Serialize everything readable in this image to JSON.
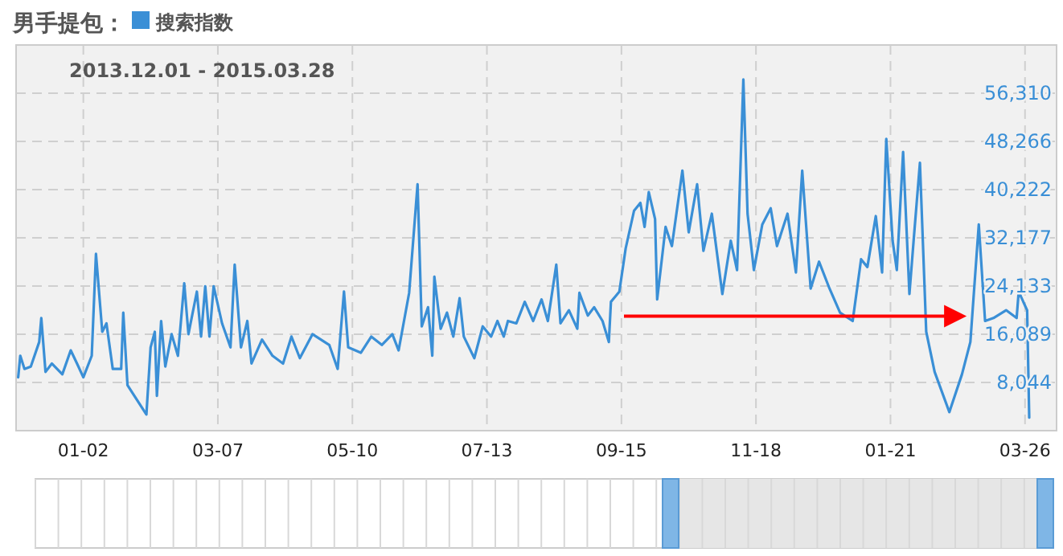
{
  "chart_data": {
    "type": "line",
    "title": "男手提包：",
    "subtitle": "2013.12.01 - 2015.03.28",
    "legend": "top left",
    "grid": true,
    "marker": "none",
    "line_style": "solid",
    "xlim": [
      "2013-12-01",
      "2015-03-28"
    ],
    "xticks": [
      {
        "value": "2014-01-02",
        "label": "01-02"
      },
      {
        "value": "2014-03-07",
        "label": "03-07"
      },
      {
        "value": "2014-05-10",
        "label": "05-10"
      },
      {
        "value": "2014-07-13",
        "label": "07-13"
      },
      {
        "value": "2014-09-15",
        "label": "09-15"
      },
      {
        "value": "2014-11-18",
        "label": "11-18"
      },
      {
        "value": "2015-01-21",
        "label": "01-21"
      },
      {
        "value": "2015-03-26",
        "label": "03-26"
      }
    ],
    "ylim": [
      0,
      64354
    ],
    "yticks": [
      {
        "value": 8044,
        "label": "8,044"
      },
      {
        "value": 16089,
        "label": "16,089"
      },
      {
        "value": 24133,
        "label": "24,133"
      },
      {
        "value": 32177,
        "label": "32,177"
      },
      {
        "value": 40222,
        "label": "40,222"
      },
      {
        "value": 48266,
        "label": "48,266"
      },
      {
        "value": 56310,
        "label": "56,310"
      }
    ],
    "x": [
      "2013-12-02",
      "2013-12-03",
      "2013-12-05",
      "2013-12-08",
      "2013-12-12",
      "2013-12-13",
      "2013-12-15",
      "2013-12-18",
      "2013-12-23",
      "2013-12-27",
      "2013-12-30",
      "2014-01-02",
      "2014-01-06",
      "2014-01-08",
      "2014-01-11",
      "2014-01-13",
      "2014-01-16",
      "2014-01-20",
      "2014-01-21",
      "2014-01-23",
      "2014-01-27",
      "2014-02-01",
      "2014-02-03",
      "2014-02-05",
      "2014-02-06",
      "2014-02-08",
      "2014-02-10",
      "2014-02-13",
      "2014-02-16",
      "2014-02-19",
      "2014-02-21",
      "2014-02-25",
      "2014-02-27",
      "2014-03-01",
      "2014-03-03",
      "2014-03-05",
      "2014-03-09",
      "2014-03-13",
      "2014-03-15",
      "2014-03-18",
      "2014-03-21",
      "2014-03-23",
      "2014-03-28",
      "2014-04-02",
      "2014-04-07",
      "2014-04-11",
      "2014-04-15",
      "2014-04-21",
      "2014-04-29",
      "2014-05-03",
      "2014-05-06",
      "2014-05-08",
      "2014-05-14",
      "2014-05-19",
      "2014-05-24",
      "2014-05-29",
      "2014-06-01",
      "2014-06-06",
      "2014-06-10",
      "2014-06-12",
      "2014-06-15",
      "2014-06-17",
      "2014-06-18",
      "2014-06-21",
      "2014-06-24",
      "2014-06-27",
      "2014-06-30",
      "2014-07-02",
      "2014-07-07",
      "2014-07-11",
      "2014-07-15",
      "2014-07-18",
      "2014-07-21",
      "2014-07-23",
      "2014-07-27",
      "2014-07-31",
      "2014-08-04",
      "2014-08-08",
      "2014-08-11",
      "2014-08-15",
      "2014-08-17",
      "2014-08-21",
      "2014-08-25",
      "2014-08-26",
      "2014-08-30",
      "2014-09-02",
      "2014-09-06",
      "2014-09-09",
      "2014-09-10",
      "2014-09-14",
      "2014-09-17",
      "2014-09-21",
      "2014-09-24",
      "2014-09-26",
      "2014-09-28",
      "2014-10-01",
      "2014-10-02",
      "2014-10-06",
      "2014-10-09",
      "2014-10-14",
      "2014-10-17",
      "2014-10-21",
      "2014-10-24",
      "2014-10-28",
      "2014-11-02",
      "2014-11-06",
      "2014-11-09",
      "2014-11-12",
      "2014-11-14",
      "2014-11-17",
      "2014-11-21",
      "2014-11-25",
      "2014-11-28",
      "2014-12-03",
      "2014-12-07",
      "2014-12-10",
      "2014-12-14",
      "2014-12-18",
      "2014-12-23",
      "2014-12-28",
      "2015-01-03",
      "2015-01-07",
      "2015-01-10",
      "2015-01-14",
      "2015-01-17",
      "2015-01-19",
      "2015-01-22",
      "2015-01-24",
      "2015-01-27",
      "2015-01-30",
      "2015-02-01",
      "2015-02-04",
      "2015-02-07",
      "2015-02-11",
      "2015-02-18",
      "2015-02-24",
      "2015-02-28",
      "2015-03-04",
      "2015-03-07",
      "2015-03-11",
      "2015-03-17",
      "2015-03-22",
      "2015-03-23",
      "2015-03-27",
      "2015-03-28"
    ],
    "series": [
      {
        "name": "搜索指数",
        "color": "#3a8fd6",
        "values": [
          8900,
          12500,
          10300,
          10700,
          14800,
          18800,
          9800,
          11200,
          9400,
          13400,
          11200,
          8900,
          12500,
          29500,
          16500,
          17900,
          10300,
          10300,
          19700,
          7600,
          5400,
          2700,
          13900,
          16500,
          5800,
          18300,
          10700,
          16100,
          12500,
          24600,
          16100,
          23200,
          15700,
          24100,
          15700,
          24100,
          17900,
          13900,
          27700,
          13900,
          18300,
          11200,
          15200,
          12500,
          11200,
          15700,
          12100,
          16100,
          14300,
          10300,
          23200,
          13900,
          13000,
          15700,
          14300,
          16100,
          13400,
          23000,
          41100,
          17400,
          20600,
          12500,
          25700,
          17000,
          19700,
          15700,
          22100,
          15700,
          12100,
          17400,
          15700,
          18300,
          15700,
          18300,
          17900,
          21500,
          18300,
          21900,
          18300,
          27700,
          17900,
          20100,
          17000,
          23000,
          19200,
          20600,
          18300,
          14800,
          21500,
          23200,
          30400,
          36700,
          38000,
          34000,
          39800,
          35300,
          21900,
          34000,
          30800,
          43400,
          33100,
          41100,
          30000,
          36200,
          22800,
          31700,
          26800,
          58600,
          36200,
          26800,
          34400,
          37100,
          30800,
          36200,
          26400,
          43400,
          23700,
          28200,
          23700,
          19700,
          18300,
          28600,
          27300,
          35800,
          26400,
          48700,
          31700,
          26800,
          46500,
          22800,
          31700,
          44700,
          16500,
          9800,
          3100,
          9400,
          14800,
          34400,
          18300,
          18800,
          20100,
          18800,
          23200,
          20100,
          2200
        ]
      }
    ]
  }
}
